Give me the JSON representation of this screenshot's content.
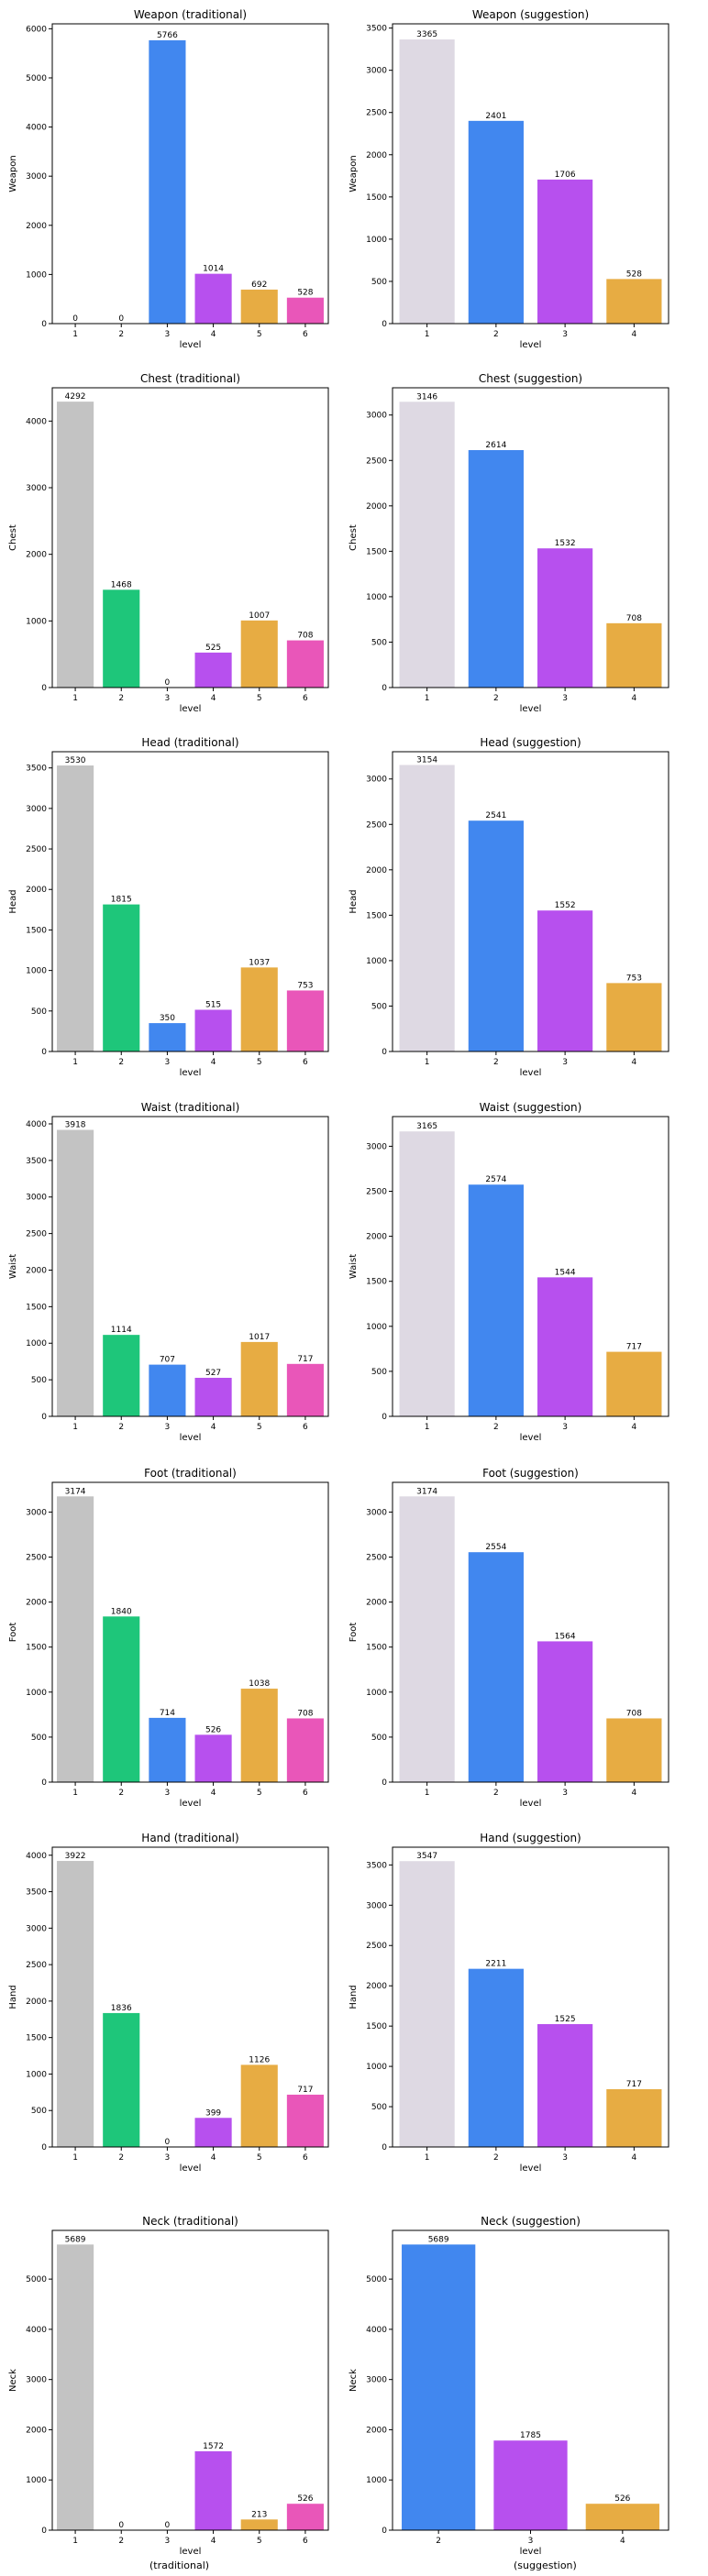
{
  "colors": {
    "level1_traditional": "#c3c3c3",
    "level1_suggestion": "#ded9e3",
    "level2_traditional": "#1ec67a",
    "blue": "#4187ef",
    "purple": "#b750ee",
    "orange": "#e7ac43",
    "pink": "#e956b9"
  },
  "footer_labels": [
    "(traditional)",
    "(suggestion)"
  ],
  "chart_data": [
    {
      "type": "bar",
      "title": "Weapon (traditional)",
      "xlabel": "level",
      "ylabel": "Weapon",
      "categories": [
        "1",
        "2",
        "3",
        "4",
        "5",
        "6"
      ],
      "values": [
        0,
        0,
        5766,
        1014,
        692,
        528
      ],
      "colors": [
        "#c3c3c3",
        "#1ec67a",
        "#4187ef",
        "#b750ee",
        "#e7ac43",
        "#e956b9"
      ],
      "ylim": [
        0,
        6100
      ],
      "yticks": [
        0,
        1000,
        2000,
        3000,
        4000,
        5000,
        6000
      ]
    },
    {
      "type": "bar",
      "title": "Weapon (suggestion)",
      "xlabel": "level",
      "ylabel": "Weapon",
      "categories": [
        "1",
        "2",
        "3",
        "4"
      ],
      "values": [
        3365,
        2401,
        1706,
        528
      ],
      "colors": [
        "#ded9e3",
        "#4187ef",
        "#b750ee",
        "#e7ac43"
      ],
      "ylim": [
        0,
        3550
      ],
      "yticks": [
        0,
        500,
        1000,
        1500,
        2000,
        2500,
        3000,
        3500
      ]
    },
    {
      "type": "bar",
      "title": "Chest (traditional)",
      "xlabel": "level",
      "ylabel": "Chest",
      "categories": [
        "1",
        "2",
        "3",
        "4",
        "5",
        "6"
      ],
      "values": [
        4292,
        1468,
        0,
        525,
        1007,
        708
      ],
      "colors": [
        "#c3c3c3",
        "#1ec67a",
        "#4187ef",
        "#b750ee",
        "#e7ac43",
        "#e956b9"
      ],
      "ylim": [
        0,
        4500
      ],
      "yticks": [
        0,
        1000,
        2000,
        3000,
        4000
      ]
    },
    {
      "type": "bar",
      "title": "Chest (suggestion)",
      "xlabel": "level",
      "ylabel": "Chest",
      "categories": [
        "1",
        "2",
        "3",
        "4"
      ],
      "values": [
        3146,
        2614,
        1532,
        708
      ],
      "colors": [
        "#ded9e3",
        "#4187ef",
        "#b750ee",
        "#e7ac43"
      ],
      "ylim": [
        0,
        3300
      ],
      "yticks": [
        0,
        500,
        1000,
        1500,
        2000,
        2500,
        3000
      ]
    },
    {
      "type": "bar",
      "title": "Head (traditional)",
      "xlabel": "level",
      "ylabel": "Head",
      "categories": [
        "1",
        "2",
        "3",
        "4",
        "5",
        "6"
      ],
      "values": [
        3530,
        1815,
        350,
        515,
        1037,
        753
      ],
      "colors": [
        "#c3c3c3",
        "#1ec67a",
        "#4187ef",
        "#b750ee",
        "#e7ac43",
        "#e956b9"
      ],
      "ylim": [
        0,
        3700
      ],
      "yticks": [
        0,
        500,
        1000,
        1500,
        2000,
        2500,
        3000,
        3500
      ]
    },
    {
      "type": "bar",
      "title": "Head (suggestion)",
      "xlabel": "level",
      "ylabel": "Head",
      "categories": [
        "1",
        "2",
        "3",
        "4"
      ],
      "values": [
        3154,
        2541,
        1552,
        753
      ],
      "colors": [
        "#ded9e3",
        "#4187ef",
        "#b750ee",
        "#e7ac43"
      ],
      "ylim": [
        0,
        3300
      ],
      "yticks": [
        0,
        500,
        1000,
        1500,
        2000,
        2500,
        3000
      ]
    },
    {
      "type": "bar",
      "title": "Waist (traditional)",
      "xlabel": "level",
      "ylabel": "Waist",
      "categories": [
        "1",
        "2",
        "3",
        "4",
        "5",
        "6"
      ],
      "values": [
        3918,
        1114,
        707,
        527,
        1017,
        717
      ],
      "colors": [
        "#c3c3c3",
        "#1ec67a",
        "#4187ef",
        "#b750ee",
        "#e7ac43",
        "#e956b9"
      ],
      "ylim": [
        0,
        4100
      ],
      "yticks": [
        0,
        500,
        1000,
        1500,
        2000,
        2500,
        3000,
        3500,
        4000
      ]
    },
    {
      "type": "bar",
      "title": "Waist (suggestion)",
      "xlabel": "level",
      "ylabel": "Waist",
      "categories": [
        "1",
        "2",
        "3",
        "4"
      ],
      "values": [
        3165,
        2574,
        1544,
        717
      ],
      "colors": [
        "#ded9e3",
        "#4187ef",
        "#b750ee",
        "#e7ac43"
      ],
      "ylim": [
        0,
        3330
      ],
      "yticks": [
        0,
        500,
        1000,
        1500,
        2000,
        2500,
        3000
      ]
    },
    {
      "type": "bar",
      "title": "Foot (traditional)",
      "xlabel": "level",
      "ylabel": "Foot",
      "categories": [
        "1",
        "2",
        "3",
        "4",
        "5",
        "6"
      ],
      "values": [
        3174,
        1840,
        714,
        526,
        1038,
        708
      ],
      "colors": [
        "#c3c3c3",
        "#1ec67a",
        "#4187ef",
        "#b750ee",
        "#e7ac43",
        "#e956b9"
      ],
      "ylim": [
        0,
        3330
      ],
      "yticks": [
        0,
        500,
        1000,
        1500,
        2000,
        2500,
        3000
      ]
    },
    {
      "type": "bar",
      "title": "Foot (suggestion)",
      "xlabel": "level",
      "ylabel": "Foot",
      "categories": [
        "1",
        "2",
        "3",
        "4"
      ],
      "values": [
        3174,
        2554,
        1564,
        708
      ],
      "colors": [
        "#ded9e3",
        "#4187ef",
        "#b750ee",
        "#e7ac43"
      ],
      "ylim": [
        0,
        3330
      ],
      "yticks": [
        0,
        500,
        1000,
        1500,
        2000,
        2500,
        3000
      ]
    },
    {
      "type": "bar",
      "title": "Hand (traditional)",
      "xlabel": "level",
      "ylabel": "Hand",
      "categories": [
        "1",
        "2",
        "3",
        "4",
        "5",
        "6"
      ],
      "values": [
        3922,
        1836,
        0,
        399,
        1126,
        717
      ],
      "colors": [
        "#c3c3c3",
        "#1ec67a",
        "#4187ef",
        "#b750ee",
        "#e7ac43",
        "#e956b9"
      ],
      "ylim": [
        0,
        4110
      ],
      "yticks": [
        0,
        500,
        1000,
        1500,
        2000,
        2500,
        3000,
        3500,
        4000
      ]
    },
    {
      "type": "bar",
      "title": "Hand (suggestion)",
      "xlabel": "level",
      "ylabel": "Hand",
      "categories": [
        "1",
        "2",
        "3",
        "4"
      ],
      "values": [
        3547,
        2211,
        1525,
        717
      ],
      "colors": [
        "#ded9e3",
        "#4187ef",
        "#b750ee",
        "#e7ac43"
      ],
      "ylim": [
        0,
        3720
      ],
      "yticks": [
        0,
        500,
        1000,
        1500,
        2000,
        2500,
        3000,
        3500
      ]
    },
    {
      "type": "bar",
      "title": "Neck (traditional)",
      "xlabel": "level",
      "ylabel": "Neck",
      "categories": [
        "1",
        "2",
        "3",
        "4",
        "5",
        "6"
      ],
      "values": [
        5689,
        0,
        0,
        1572,
        213,
        526
      ],
      "colors": [
        "#c3c3c3",
        "#1ec67a",
        "#4187ef",
        "#b750ee",
        "#e7ac43",
        "#e956b9"
      ],
      "ylim": [
        0,
        5970
      ],
      "yticks": [
        0,
        1000,
        2000,
        3000,
        4000,
        5000
      ]
    },
    {
      "type": "bar",
      "title": "Neck (suggestion)",
      "xlabel": "level",
      "ylabel": "Neck",
      "categories": [
        "2",
        "3",
        "4"
      ],
      "values": [
        5689,
        1785,
        526
      ],
      "colors": [
        "#4187ef",
        "#b750ee",
        "#e7ac43"
      ],
      "ylim": [
        0,
        5970
      ],
      "yticks": [
        0,
        1000,
        2000,
        3000,
        4000,
        5000
      ]
    }
  ]
}
